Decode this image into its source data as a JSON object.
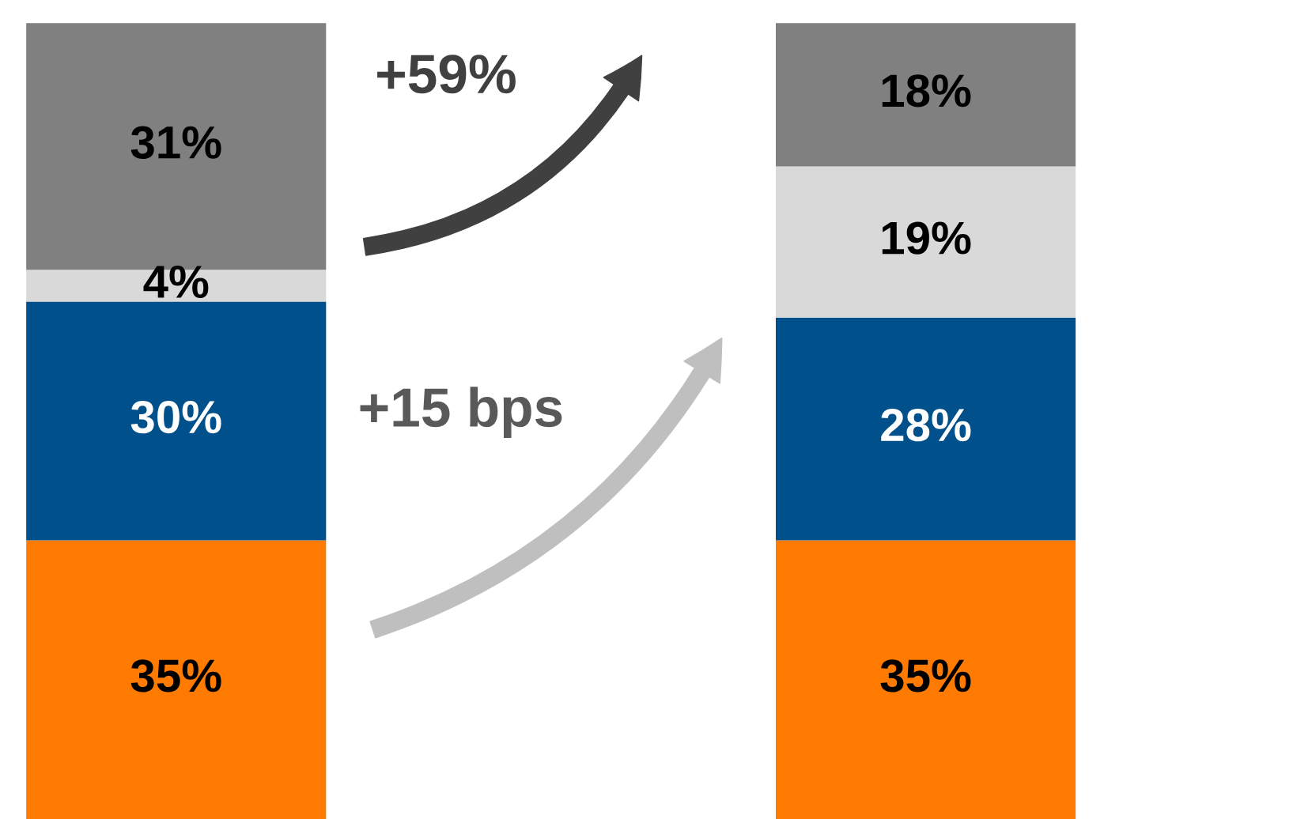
{
  "chart_data": {
    "type": "bar",
    "stacked": true,
    "categories": [
      null,
      null
    ],
    "series": [
      {
        "color": "#ff7a00",
        "values": [
          35,
          35
        ],
        "value_labels": [
          "35%",
          "35%"
        ]
      },
      {
        "color": "#00508c",
        "values": [
          30,
          28
        ],
        "value_labels": [
          "30%",
          "28%"
        ]
      },
      {
        "color": "#d9d9d9",
        "values": [
          4,
          19
        ],
        "value_labels": [
          "4%",
          "19%"
        ]
      },
      {
        "color": "#808080",
        "values": [
          31,
          18
        ],
        "value_labels": [
          "31%",
          "18%"
        ]
      }
    ],
    "annotations": [
      "+59%",
      "+15 bps"
    ]
  }
}
